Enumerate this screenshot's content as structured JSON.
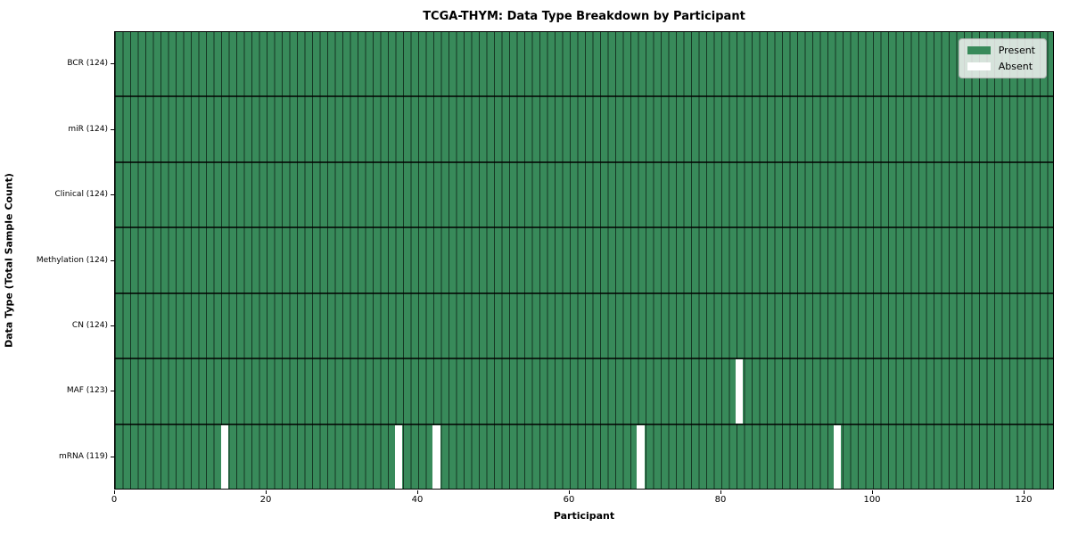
{
  "chart_data": {
    "type": "heatmap",
    "title": "TCGA-THYM: Data Type Breakdown by Participant",
    "xlabel": "Participant",
    "ylabel": "Data Type (Total Sample Count)",
    "x_ticks": [
      0,
      20,
      40,
      60,
      80,
      100,
      120
    ],
    "xlim": [
      0,
      124
    ],
    "n_participants": 124,
    "grid": "cell edges visible, dark row dividers",
    "legend": {
      "position": "upper right",
      "entries": [
        {
          "label": "Present",
          "color": "#388a5a"
        },
        {
          "label": "Absent",
          "color": "#ffffff"
        }
      ]
    },
    "rows": [
      {
        "label": "BCR (124)",
        "data_type": "BCR",
        "present_count": 124,
        "absent_participants": []
      },
      {
        "label": "miR (124)",
        "data_type": "miR",
        "present_count": 124,
        "absent_participants": []
      },
      {
        "label": "Clinical (124)",
        "data_type": "Clinical",
        "present_count": 124,
        "absent_participants": []
      },
      {
        "label": "Methylation (124)",
        "data_type": "Methylation",
        "present_count": 124,
        "absent_participants": []
      },
      {
        "label": "CN (124)",
        "data_type": "CN",
        "present_count": 124,
        "absent_participants": []
      },
      {
        "label": "MAF (123)",
        "data_type": "MAF",
        "present_count": 123,
        "absent_participants": [
          82
        ]
      },
      {
        "label": "mRNA (119)",
        "data_type": "mRNA",
        "present_count": 119,
        "absent_participants": [
          14,
          37,
          42,
          69,
          95
        ]
      }
    ],
    "colors": {
      "present": "#388a5a",
      "absent": "#ffffff",
      "cell_edge": "rgba(0,0,0,0.6)",
      "row_divider": "rgba(0,0,0,0.75)",
      "spine": "#000000",
      "legend_bg": "rgba(242,242,242,0.85)"
    }
  }
}
